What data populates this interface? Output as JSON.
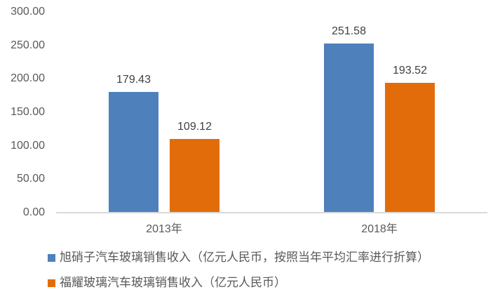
{
  "chart_data": {
    "type": "bar",
    "categories": [
      "2013年",
      "2018年"
    ],
    "series": [
      {
        "name": "旭硝子汽车玻璃销售收入（亿元人民币，按照当年平均汇率进行折算）",
        "values": [
          179.43,
          251.58
        ],
        "color": "#4E80BC"
      },
      {
        "name": "福耀玻璃汽车玻璃销售收入（亿元人民币）",
        "values": [
          109.12,
          193.52
        ],
        "color": "#E36C0A"
      }
    ],
    "title": "",
    "xlabel": "",
    "ylabel": "",
    "ylim": [
      0,
      300
    ],
    "ytick_step": 50,
    "ytick_labels": [
      "0.00",
      "50.00",
      "100.00",
      "150.00",
      "200.00",
      "250.00",
      "300.00"
    ],
    "data_labels": true,
    "grid": false,
    "legend_position": "bottom-left"
  },
  "colors": {
    "axis_line": "#D9D9D9",
    "tick_text": "#595959",
    "data_label_text": "#404040",
    "legend_text": "#595959",
    "background": "#FFFFFF"
  }
}
